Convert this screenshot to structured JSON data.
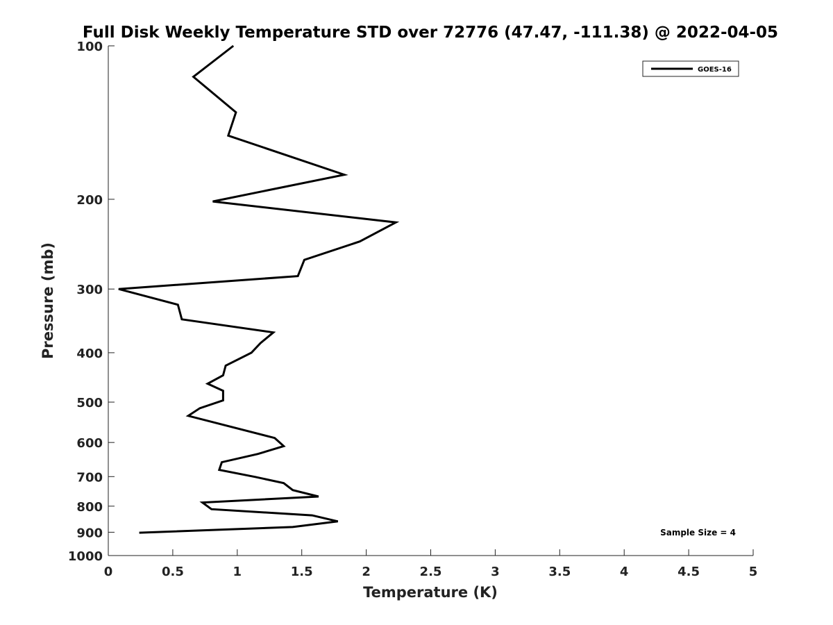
{
  "chart_data": {
    "type": "line",
    "title": "Full Disk Weekly Temperature STD over 72776 (47.47, -111.38) @ 2022-04-05",
    "xlabel": "Temperature (K)",
    "ylabel": "Pressure (mb)",
    "xlim": [
      0,
      5
    ],
    "ylim": [
      100,
      1000
    ],
    "yscale": "log",
    "y_reversed": true,
    "grid": false,
    "legend_position": "top-right",
    "x_ticks": [
      "0",
      "0.5",
      "1",
      "1.5",
      "2",
      "2.5",
      "3",
      "3.5",
      "4",
      "4.5",
      "5"
    ],
    "y_ticks": [
      "100",
      "200",
      "300",
      "400",
      "500",
      "600",
      "700",
      "800",
      "900",
      "1000"
    ],
    "series": [
      {
        "name": "GOES-16",
        "color": "#000000",
        "points": [
          [
            0.97,
            100
          ],
          [
            0.66,
            115
          ],
          [
            0.99,
            135
          ],
          [
            0.93,
            150
          ],
          [
            1.83,
            179
          ],
          [
            0.81,
            202
          ],
          [
            2.23,
            222
          ],
          [
            1.95,
            242
          ],
          [
            1.52,
            263
          ],
          [
            1.47,
            283
          ],
          [
            0.08,
            300
          ],
          [
            0.54,
            322
          ],
          [
            0.57,
            344
          ],
          [
            1.28,
            365
          ],
          [
            1.18,
            383
          ],
          [
            1.11,
            400
          ],
          [
            0.91,
            424
          ],
          [
            0.89,
            443
          ],
          [
            0.77,
            460
          ],
          [
            0.89,
            475
          ],
          [
            0.89,
            496
          ],
          [
            0.71,
            514
          ],
          [
            0.62,
            532
          ],
          [
            1.29,
            588
          ],
          [
            1.36,
            610
          ],
          [
            1.16,
            632
          ],
          [
            0.88,
            656
          ],
          [
            0.86,
            679
          ],
          [
            1.14,
            701
          ],
          [
            1.36,
            721
          ],
          [
            1.43,
            744
          ],
          [
            1.63,
            766
          ],
          [
            0.73,
            787
          ],
          [
            0.8,
            811
          ],
          [
            1.58,
            834
          ],
          [
            1.78,
            857
          ],
          [
            1.43,
            879
          ],
          [
            0.24,
            902
          ]
        ]
      }
    ],
    "annotation": "Sample Size = 4"
  }
}
